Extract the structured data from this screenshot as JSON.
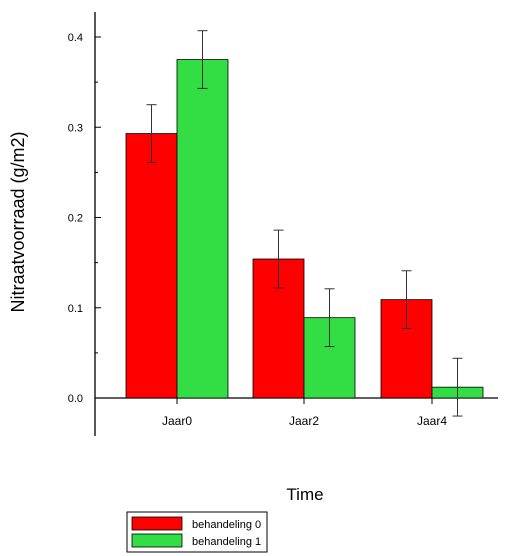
{
  "chart_data": {
    "type": "bar",
    "categories": [
      "Jaar0",
      "Jaar2",
      "Jaar4"
    ],
    "series": [
      {
        "name": "behandeling 0",
        "color": "#ff0000",
        "values": [
          0.293,
          0.154,
          0.109
        ],
        "errors": [
          0.032,
          0.032,
          0.032
        ]
      },
      {
        "name": "behandeling 1",
        "color": "#33dd44",
        "values": [
          0.375,
          0.089,
          0.012
        ],
        "errors": [
          0.032,
          0.032,
          0.032
        ]
      }
    ],
    "title": "",
    "xlabel": "Time",
    "ylabel": "Nitraatvoorraad (g/m2)",
    "ylim": [
      -0.042,
      0.43
    ],
    "yticks": [
      "0.0",
      "0.1",
      "0.2",
      "0.3",
      "0.4"
    ],
    "ytick_values": [
      0.0,
      0.1,
      0.2,
      0.3,
      0.4
    ],
    "grid": false,
    "legend_position": "bottom-left, below axis"
  }
}
